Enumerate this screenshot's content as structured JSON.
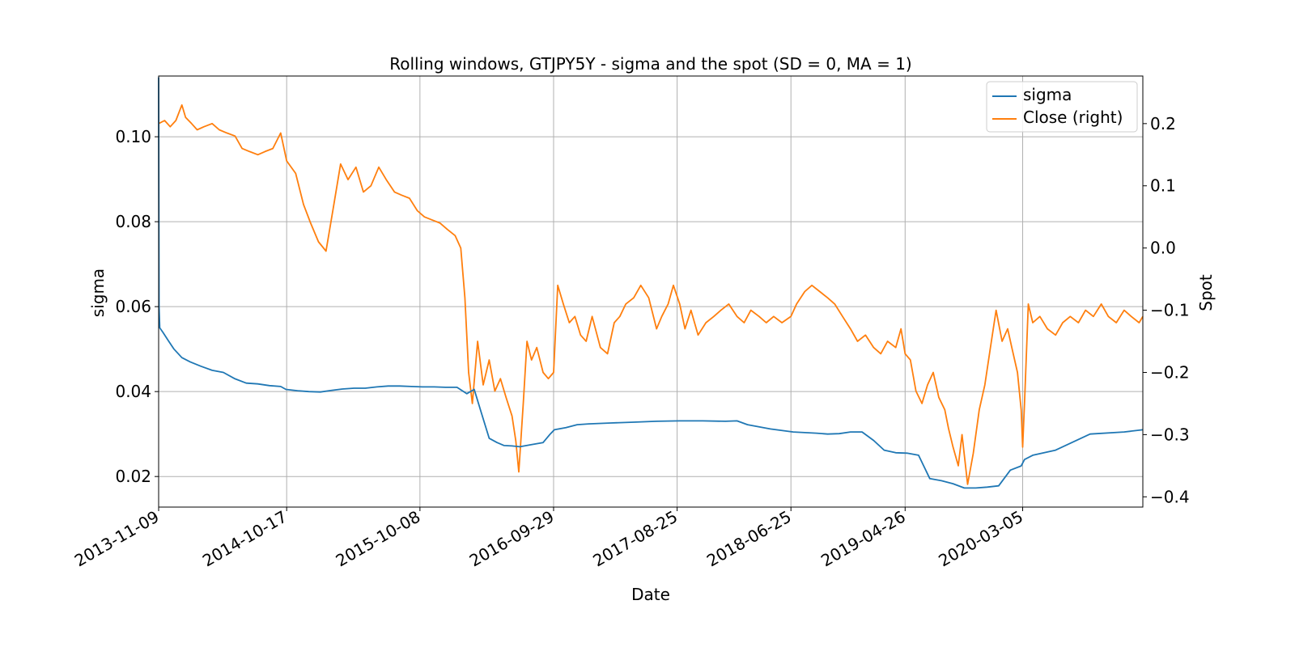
{
  "chart_data": {
    "type": "line",
    "title": "Rolling windows, GTJPY5Y - sigma and the spot (SD = 0, MA = 1)",
    "xlabel": "Date",
    "ylabel": "sigma",
    "y2label": "Spot",
    "xlim": [
      "2013-11-09",
      "2021-01-20"
    ],
    "ylim": [
      0.0128,
      0.1143
    ],
    "y2lim": [
      -0.4165,
      0.2765
    ],
    "x_ticks": [
      "2013-11-09",
      "2014-10-17",
      "2015-10-08",
      "2016-09-29",
      "2017-08-25",
      "2018-06-25",
      "2019-04-26",
      "2020-03-05"
    ],
    "y_ticks": [
      0.02,
      0.04,
      0.06,
      0.08,
      0.1
    ],
    "y_tick_labels": [
      "0.02",
      "0.04",
      "0.06",
      "0.08",
      "0.10"
    ],
    "y2_ticks": [
      -0.4,
      -0.3,
      -0.2,
      -0.1,
      0.0,
      0.1,
      0.2
    ],
    "y2_tick_labels": [
      "−0.4",
      "−0.3",
      "−0.2",
      "−0.1",
      "0.0",
      "0.1",
      "0.2"
    ],
    "grid": true,
    "legend_position": "top-right",
    "series": [
      {
        "name": "sigma",
        "axis": "left",
        "color": "#1f77b4",
        "x": [
          "2013-11-09",
          "2013-11-10",
          "2013-11-12",
          "2013-11-20",
          "2013-12-05",
          "2013-12-20",
          "2014-01-10",
          "2014-02-01",
          "2014-03-01",
          "2014-04-01",
          "2014-05-01",
          "2014-06-01",
          "2014-07-01",
          "2014-08-01",
          "2014-09-01",
          "2014-10-01",
          "2014-10-15",
          "2014-11-15",
          "2014-12-15",
          "2015-01-15",
          "2015-02-15",
          "2015-03-15",
          "2015-04-15",
          "2015-05-15",
          "2015-06-15",
          "2015-07-15",
          "2015-08-15",
          "2015-09-15",
          "2015-10-15",
          "2015-11-15",
          "2015-12-15",
          "2016-01-15",
          "2016-02-10",
          "2016-03-01",
          "2016-03-20",
          "2016-04-10",
          "2016-05-01",
          "2016-05-20",
          "2016-06-10",
          "2016-07-01",
          "2016-08-01",
          "2016-09-01",
          "2016-09-20",
          "2016-10-01",
          "2016-11-01",
          "2016-12-01",
          "2017-01-01",
          "2017-03-01",
          "2017-05-01",
          "2017-07-01",
          "2017-09-01",
          "2017-11-01",
          "2018-01-01",
          "2018-02-01",
          "2018-03-01",
          "2018-05-01",
          "2018-07-01",
          "2018-09-01",
          "2018-10-01",
          "2018-11-01",
          "2018-12-01",
          "2019-01-01",
          "2019-02-01",
          "2019-03-01",
          "2019-04-01",
          "2019-05-01",
          "2019-06-01",
          "2019-07-01",
          "2019-08-01",
          "2019-09-01",
          "2019-10-01",
          "2019-11-01",
          "2019-12-01",
          "2020-01-01",
          "2020-02-01",
          "2020-03-01",
          "2020-03-10",
          "2020-04-01",
          "2020-06-01",
          "2020-09-01",
          "2020-12-01",
          "2021-01-20"
        ],
        "values": [
          0.114,
          0.06,
          0.055,
          0.054,
          0.052,
          0.05,
          0.048,
          0.047,
          0.046,
          0.045,
          0.0445,
          0.043,
          0.042,
          0.0418,
          0.0414,
          0.0412,
          0.0405,
          0.0402,
          0.04,
          0.0399,
          0.0403,
          0.0406,
          0.0408,
          0.0408,
          0.0411,
          0.0413,
          0.0413,
          0.0412,
          0.0411,
          0.0411,
          0.041,
          0.041,
          0.0395,
          0.0405,
          0.035,
          0.029,
          0.028,
          0.0273,
          0.0272,
          0.027,
          0.0275,
          0.028,
          0.03,
          0.031,
          0.0315,
          0.0322,
          0.0324,
          0.0326,
          0.0328,
          0.033,
          0.0331,
          0.0331,
          0.033,
          0.0331,
          0.0322,
          0.0312,
          0.0305,
          0.0302,
          0.03,
          0.0301,
          0.0305,
          0.0305,
          0.0285,
          0.0262,
          0.0256,
          0.0255,
          0.025,
          0.0195,
          0.019,
          0.0183,
          0.0173,
          0.0173,
          0.0175,
          0.0178,
          0.0215,
          0.0225,
          0.024,
          0.025,
          0.0262,
          0.03,
          0.0305,
          0.031
        ]
      },
      {
        "name": "Close (right)",
        "axis": "right",
        "color": "#ff7f0e",
        "x": [
          "2013-11-09",
          "2013-11-25",
          "2013-12-10",
          "2013-12-25",
          "2014-01-10",
          "2014-01-20",
          "2014-02-05",
          "2014-02-20",
          "2014-03-10",
          "2014-04-01",
          "2014-04-20",
          "2014-05-10",
          "2014-06-01",
          "2014-06-20",
          "2014-07-10",
          "2014-08-01",
          "2014-08-20",
          "2014-09-10",
          "2014-10-01",
          "2014-10-17",
          "2014-11-10",
          "2014-12-01",
          "2014-12-20",
          "2015-01-10",
          "2015-01-30",
          "2015-02-20",
          "2015-03-10",
          "2015-03-30",
          "2015-04-20",
          "2015-05-10",
          "2015-05-30",
          "2015-06-20",
          "2015-07-10",
          "2015-08-01",
          "2015-08-20",
          "2015-09-10",
          "2015-10-01",
          "2015-10-20",
          "2015-11-10",
          "2015-12-01",
          "2015-12-20",
          "2016-01-10",
          "2016-01-25",
          "2016-02-05",
          "2016-02-15",
          "2016-02-25",
          "2016-03-10",
          "2016-03-25",
          "2016-04-10",
          "2016-04-25",
          "2016-05-10",
          "2016-05-25",
          "2016-06-10",
          "2016-06-20",
          "2016-06-28",
          "2016-07-10",
          "2016-07-20",
          "2016-08-01",
          "2016-08-15",
          "2016-09-01",
          "2016-09-15",
          "2016-09-29",
          "2016-10-10",
          "2016-10-25",
          "2016-11-10",
          "2016-11-25",
          "2016-12-10",
          "2016-12-25",
          "2017-01-10",
          "2017-02-01",
          "2017-02-20",
          "2017-03-10",
          "2017-03-25",
          "2017-04-10",
          "2017-05-01",
          "2017-05-20",
          "2017-06-10",
          "2017-07-01",
          "2017-07-15",
          "2017-08-01",
          "2017-08-15",
          "2017-09-01",
          "2017-09-15",
          "2017-10-01",
          "2017-10-20",
          "2017-11-10",
          "2017-12-01",
          "2017-12-20",
          "2018-01-10",
          "2018-02-01",
          "2018-02-20",
          "2018-03-10",
          "2018-04-01",
          "2018-04-20",
          "2018-05-10",
          "2018-06-01",
          "2018-06-25",
          "2018-07-10",
          "2018-08-01",
          "2018-08-20",
          "2018-09-10",
          "2018-10-01",
          "2018-10-20",
          "2018-11-10",
          "2018-12-01",
          "2018-12-20",
          "2019-01-10",
          "2019-02-01",
          "2019-02-20",
          "2019-03-10",
          "2019-04-01",
          "2019-04-15",
          "2019-04-26",
          "2019-05-10",
          "2019-05-25",
          "2019-06-10",
          "2019-06-25",
          "2019-07-10",
          "2019-07-25",
          "2019-08-10",
          "2019-08-20",
          "2019-09-01",
          "2019-09-15",
          "2019-09-25",
          "2019-10-10",
          "2019-10-25",
          "2019-11-10",
          "2019-11-25",
          "2019-12-10",
          "2019-12-25",
          "2020-01-10",
          "2020-01-25",
          "2020-02-05",
          "2020-02-20",
          "2020-03-01",
          "2020-03-05",
          "2020-03-10",
          "2020-03-20",
          "2020-04-01",
          "2020-04-20",
          "2020-05-10",
          "2020-06-01",
          "2020-06-20",
          "2020-07-10",
          "2020-08-01",
          "2020-08-20",
          "2020-09-10",
          "2020-10-01",
          "2020-10-20",
          "2020-11-10",
          "2020-12-01",
          "2020-12-20",
          "2021-01-10",
          "2021-01-20"
        ],
        "values": [
          0.2,
          0.205,
          0.195,
          0.205,
          0.23,
          0.21,
          0.2,
          0.19,
          0.195,
          0.2,
          0.19,
          0.185,
          0.18,
          0.16,
          0.155,
          0.15,
          0.155,
          0.16,
          0.185,
          0.14,
          0.12,
          0.07,
          0.04,
          0.01,
          -0.005,
          0.07,
          0.135,
          0.11,
          0.13,
          0.09,
          0.1,
          0.13,
          0.11,
          0.09,
          0.085,
          0.08,
          0.06,
          0.05,
          0.045,
          0.04,
          0.03,
          0.02,
          0.0,
          -0.08,
          -0.2,
          -0.25,
          -0.15,
          -0.22,
          -0.18,
          -0.23,
          -0.21,
          -0.24,
          -0.27,
          -0.31,
          -0.36,
          -0.25,
          -0.15,
          -0.18,
          -0.16,
          -0.2,
          -0.21,
          -0.2,
          -0.06,
          -0.09,
          -0.12,
          -0.11,
          -0.14,
          -0.15,
          -0.11,
          -0.16,
          -0.17,
          -0.12,
          -0.11,
          -0.09,
          -0.08,
          -0.06,
          -0.08,
          -0.13,
          -0.11,
          -0.09,
          -0.06,
          -0.09,
          -0.13,
          -0.1,
          -0.14,
          -0.12,
          -0.11,
          -0.1,
          -0.09,
          -0.11,
          -0.12,
          -0.1,
          -0.11,
          -0.12,
          -0.11,
          -0.12,
          -0.11,
          -0.09,
          -0.07,
          -0.06,
          -0.07,
          -0.08,
          -0.09,
          -0.11,
          -0.13,
          -0.15,
          -0.14,
          -0.16,
          -0.17,
          -0.15,
          -0.16,
          -0.13,
          -0.17,
          -0.18,
          -0.23,
          -0.25,
          -0.22,
          -0.2,
          -0.24,
          -0.26,
          -0.29,
          -0.32,
          -0.35,
          -0.3,
          -0.38,
          -0.33,
          -0.26,
          -0.22,
          -0.16,
          -0.1,
          -0.15,
          -0.13,
          -0.16,
          -0.2,
          -0.26,
          -0.32,
          -0.25,
          -0.09,
          -0.12,
          -0.11,
          -0.13,
          -0.14,
          -0.12,
          -0.11,
          -0.12,
          -0.1,
          -0.11,
          -0.09,
          -0.11,
          -0.12,
          -0.1,
          -0.11,
          -0.12,
          -0.11
        ]
      }
    ]
  }
}
